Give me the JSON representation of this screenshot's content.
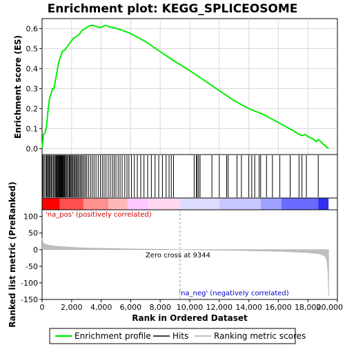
{
  "chart_data": {
    "type": "line",
    "title": "Enrichment plot: KEGG_SPLICEOSOME",
    "colors": {
      "es_line": "#00ee00",
      "hits": "#000000",
      "metric_fill": "#c0c0c0",
      "pos_label": "#cc0000",
      "neg_label": "#0000cc",
      "zero_cross": "#909090"
    },
    "enrichment_panel": {
      "ylabel": "Enrichment score (ES)",
      "ylim": [
        -0.03,
        0.65
      ],
      "yticks": [
        "0.0",
        "0.1",
        "0.2",
        "0.3",
        "0.4",
        "0.5",
        "0.6"
      ],
      "ytick_values": [
        0.0,
        0.1,
        0.2,
        0.3,
        0.4,
        0.5,
        0.6
      ],
      "grid": true,
      "series": [
        {
          "name": "Enrichment profile",
          "x": [
            0,
            100,
            200,
            300,
            400,
            500,
            600,
            700,
            800,
            900,
            1000,
            1100,
            1200,
            1300,
            1400,
            1500,
            1700,
            1900,
            2100,
            2300,
            2500,
            2700,
            2900,
            3100,
            3300,
            3500,
            3700,
            3900,
            4100,
            4300,
            4500,
            4800,
            5100,
            5500,
            6000,
            6500,
            7000,
            7500,
            8000,
            8500,
            9000,
            9344,
            10000,
            11000,
            12000,
            13000,
            14000,
            15000,
            15500,
            16000,
            16500,
            17000,
            17300,
            17600,
            17800,
            18000,
            18300,
            18600,
            18700,
            18800,
            19000,
            19200,
            19400
          ],
          "y": [
            0.0,
            0.07,
            0.08,
            0.11,
            0.19,
            0.25,
            0.27,
            0.3,
            0.3,
            0.34,
            0.38,
            0.42,
            0.45,
            0.47,
            0.49,
            0.49,
            0.51,
            0.53,
            0.55,
            0.56,
            0.57,
            0.59,
            0.6,
            0.61,
            0.615,
            0.615,
            0.61,
            0.605,
            0.61,
            0.617,
            0.61,
            0.605,
            0.6,
            0.59,
            0.575,
            0.555,
            0.535,
            0.51,
            0.485,
            0.46,
            0.435,
            0.42,
            0.39,
            0.34,
            0.29,
            0.24,
            0.2,
            0.17,
            0.15,
            0.13,
            0.11,
            0.09,
            0.075,
            0.065,
            0.07,
            0.06,
            0.05,
            0.035,
            0.045,
            0.04,
            0.025,
            0.012,
            0.0
          ]
        }
      ]
    },
    "hits_panel": {
      "name": "Hits",
      "hit_positions": [
        20,
        80,
        150,
        250,
        310,
        370,
        430,
        490,
        560,
        620,
        690,
        770,
        840,
        900,
        960,
        1010,
        1060,
        1100,
        1140,
        1190,
        1230,
        1270,
        1310,
        1350,
        1390,
        1430,
        1480,
        1520,
        1580,
        1640,
        1700,
        1780,
        1850,
        1900,
        1960,
        2020,
        2090,
        2160,
        2230,
        2300,
        2370,
        2440,
        2520,
        2600,
        2680,
        2760,
        2850,
        2940,
        3030,
        3150,
        3280,
        3400,
        3520,
        3650,
        3800,
        3950,
        4080,
        4200,
        4330,
        4480,
        4620,
        4760,
        4880,
        5000,
        5150,
        5280,
        5420,
        5600,
        5750,
        5880,
        6050,
        6250,
        6450,
        6680,
        6900,
        7150,
        7400,
        7650,
        7900,
        8150,
        8400,
        8600,
        8750,
        8900,
        10300,
        10450,
        10500,
        10600,
        10700,
        11500,
        12000,
        12500,
        12600,
        13200,
        13500,
        14000,
        14200,
        14400,
        14700,
        14800,
        15200,
        15600,
        16100,
        16800,
        17400,
        17600,
        17900,
        18700
      ]
    },
    "ranking_bar": {
      "segments": [
        {
          "color": "#ff0000",
          "from": 0,
          "to": 1200
        },
        {
          "color": "#ff5050",
          "from": 1200,
          "to": 2800
        },
        {
          "color": "#ff9090",
          "from": 2800,
          "to": 4500
        },
        {
          "color": "#ffb8b8",
          "from": 4500,
          "to": 5800
        },
        {
          "color": "#ffc8ff",
          "from": 5800,
          "to": 7200
        },
        {
          "color": "#ffd8f0",
          "from": 7200,
          "to": 9344
        },
        {
          "color": "#dcdcff",
          "from": 9344,
          "to": 12000
        },
        {
          "color": "#c8c8ff",
          "from": 12000,
          "to": 14800
        },
        {
          "color": "#a0a0ff",
          "from": 14800,
          "to": 16200
        },
        {
          "color": "#6a6aff",
          "from": 16200,
          "to": 18700
        },
        {
          "color": "#3030ee",
          "from": 18700,
          "to": 19400
        }
      ]
    },
    "metric_panel": {
      "name": "Ranking metric scores",
      "ylabel": "Ranked list metric (PreRanked)",
      "xlabel": "Rank in Ordered Dataset",
      "ylim": [
        -150,
        120
      ],
      "yticks": [
        "100",
        "50",
        "0",
        "-50",
        "-100",
        "-150"
      ],
      "ytick_values": [
        100,
        50,
        0,
        -50,
        -100,
        -150
      ],
      "xlim": [
        0,
        20000
      ],
      "xticks": [
        "0",
        "2,000",
        "4,000",
        "6,000",
        "8,000",
        "10,000",
        "12,000",
        "14,000",
        "16,000",
        "18,000",
        "20,000"
      ],
      "xtick_values": [
        0,
        2000,
        4000,
        6000,
        8000,
        10000,
        12000,
        14000,
        16000,
        18000,
        20000
      ],
      "x": [
        0,
        30,
        100,
        250,
        500,
        1000,
        2000,
        3000,
        4000,
        5000,
        6000,
        7000,
        8000,
        9344,
        10000,
        11000,
        12000,
        13000,
        14000,
        15000,
        16000,
        17000,
        17500,
        18000,
        18500,
        18800,
        19000,
        19200,
        19300,
        19380,
        19400
      ],
      "y": [
        35,
        26,
        20,
        16,
        13,
        10,
        7,
        5,
        4,
        3,
        2,
        1.5,
        1,
        0,
        -0.5,
        -1,
        -1.5,
        -2,
        -3,
        -4,
        -5,
        -7,
        -8,
        -9,
        -11,
        -13,
        -16,
        -22,
        -35,
        -80,
        -140
      ],
      "zero_cross_label": "Zero cross at 9344",
      "zero_cross": 9344,
      "pos_label": "'na_pos' (positively correlated)",
      "neg_label": "'na_neg' (negatively correlated)"
    },
    "legend": {
      "items": [
        {
          "label": "Enrichment profile",
          "color": "#00ee00"
        },
        {
          "label": "Hits",
          "color": "#000000"
        },
        {
          "label": "Ranking metric scores",
          "color": "#c0c0c0"
        }
      ]
    }
  }
}
